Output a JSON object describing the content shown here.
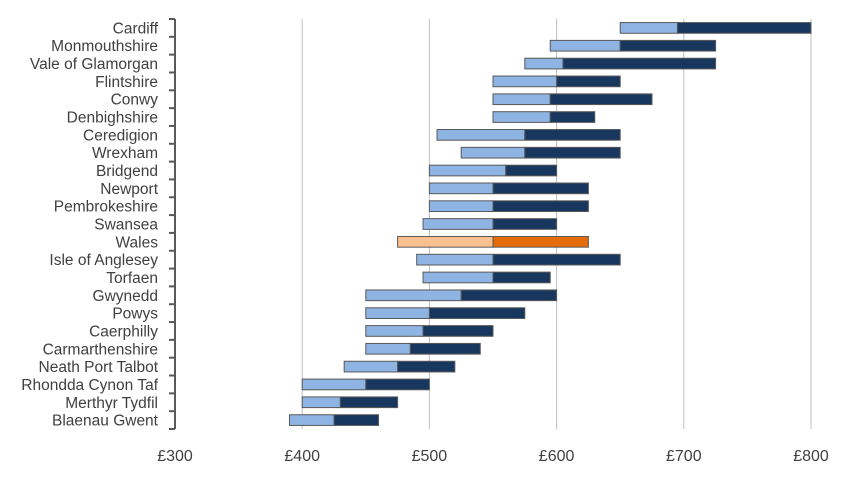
{
  "chart_data": {
    "type": "bar",
    "orientation": "horizontal",
    "stacked_floating": true,
    "categories": [
      "Cardiff",
      "Monmouthshire",
      "Vale of Glamorgan",
      "Flintshire",
      "Conwy",
      "Denbighshire",
      "Ceredigion",
      "Wrexham",
      "Bridgend",
      "Newport",
      "Pembrokeshire",
      "Swansea",
      "Wales",
      "Isle of Anglesey",
      "Torfaen",
      "Gwynedd",
      "Powys",
      "Caerphilly",
      "Carmarthenshire",
      "Neath Port Talbot",
      "Rhondda Cynon Taf",
      "Merthyr Tydfil",
      "Blaenau Gwent"
    ],
    "start": [
      650,
      595,
      575,
      550,
      550,
      550,
      506,
      525,
      500,
      500,
      500,
      495,
      475,
      490,
      495,
      450,
      450,
      450,
      450,
      433,
      400,
      400,
      390
    ],
    "mid": [
      695,
      650,
      605,
      600,
      595,
      595,
      575,
      575,
      560,
      550,
      550,
      550,
      550,
      550,
      550,
      525,
      500,
      495,
      485,
      475,
      450,
      430,
      425
    ],
    "end": [
      800,
      725,
      725,
      650,
      675,
      630,
      650,
      650,
      600,
      625,
      625,
      600,
      625,
      650,
      595,
      600,
      575,
      550,
      540,
      520,
      500,
      475,
      460
    ],
    "highlight_category": "Wales",
    "xlim": [
      300,
      800
    ],
    "xticks": [
      300,
      400,
      500,
      600,
      700,
      800
    ],
    "xtick_labels": [
      "£300",
      "£400",
      "£500",
      "£600",
      "£700",
      "£800"
    ],
    "grid": "vertical",
    "colors": {
      "lower": "#8EB4E3",
      "upper": "#17375E",
      "highlight_lower": "#FAC090",
      "highlight_upper": "#E46C0A",
      "outline": "#595959",
      "grid": "#BFBFBF"
    }
  }
}
